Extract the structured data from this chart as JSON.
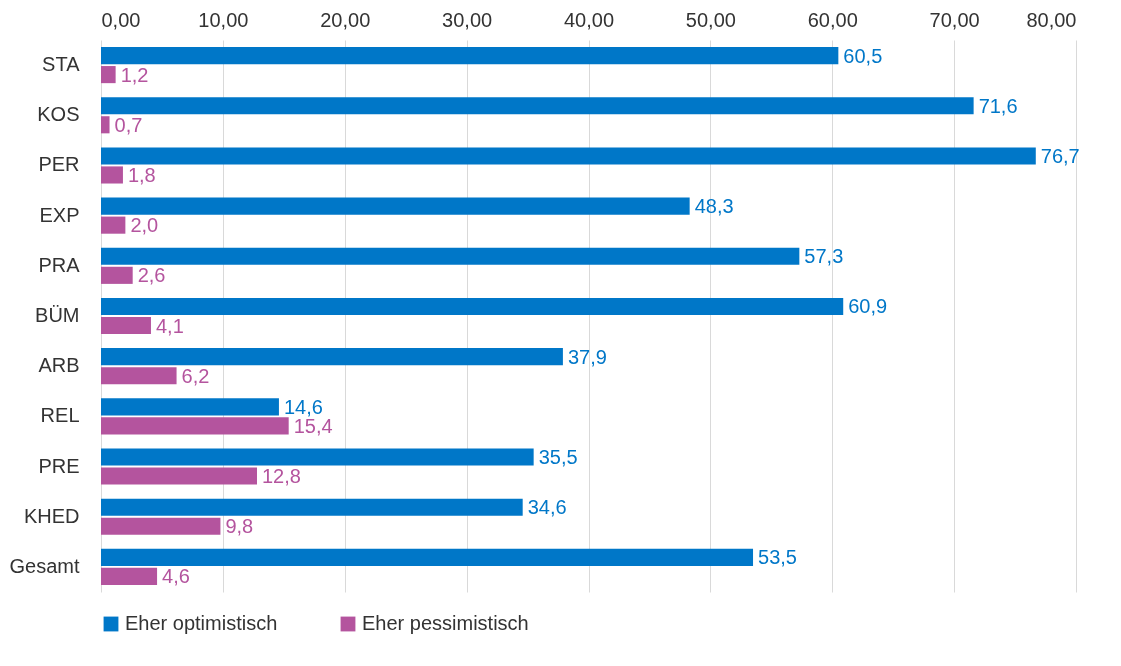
{
  "chart_data": {
    "type": "bar",
    "orientation": "horizontal",
    "categories": [
      "STA",
      "KOS",
      "PER",
      "EXP",
      "PRA",
      "BÜM",
      "ARB",
      "REL",
      "PRE",
      "KHED",
      "Gesamt"
    ],
    "series": [
      {
        "name": "Eher optimistisch",
        "color": "#0077c8",
        "values": [
          60.5,
          71.6,
          76.7,
          48.3,
          57.3,
          60.9,
          37.9,
          14.6,
          35.5,
          34.6,
          53.5
        ],
        "value_labels": [
          "60,5",
          "71,6",
          "76,7",
          "48,3",
          "57,3",
          "60,9",
          "37,9",
          "14,6",
          "35,5",
          "34,6",
          "53,5"
        ]
      },
      {
        "name": "Eher pessimistisch",
        "color": "#b4549e",
        "values": [
          1.2,
          0.7,
          1.8,
          2.0,
          2.6,
          4.1,
          6.2,
          15.4,
          12.8,
          9.8,
          4.6
        ],
        "value_labels": [
          "1,2",
          "0,7",
          "1,8",
          "2,0",
          "2,6",
          "4,1",
          "6,2",
          "15,4",
          "12,8",
          "9,8",
          "4,6"
        ]
      }
    ],
    "xlim": [
      0,
      80
    ],
    "xticks": [
      {
        "value": 0,
        "label": "0,00"
      },
      {
        "value": 10,
        "label": "10,00"
      },
      {
        "value": 20,
        "label": "20,00"
      },
      {
        "value": 30,
        "label": "30,00"
      },
      {
        "value": 40,
        "label": "40,00"
      },
      {
        "value": 50,
        "label": "50,00"
      },
      {
        "value": 60,
        "label": "60,00"
      },
      {
        "value": 70,
        "label": "70,00"
      },
      {
        "value": 80,
        "label": "80,00"
      }
    ],
    "grid": "x",
    "legend": "bottom"
  }
}
